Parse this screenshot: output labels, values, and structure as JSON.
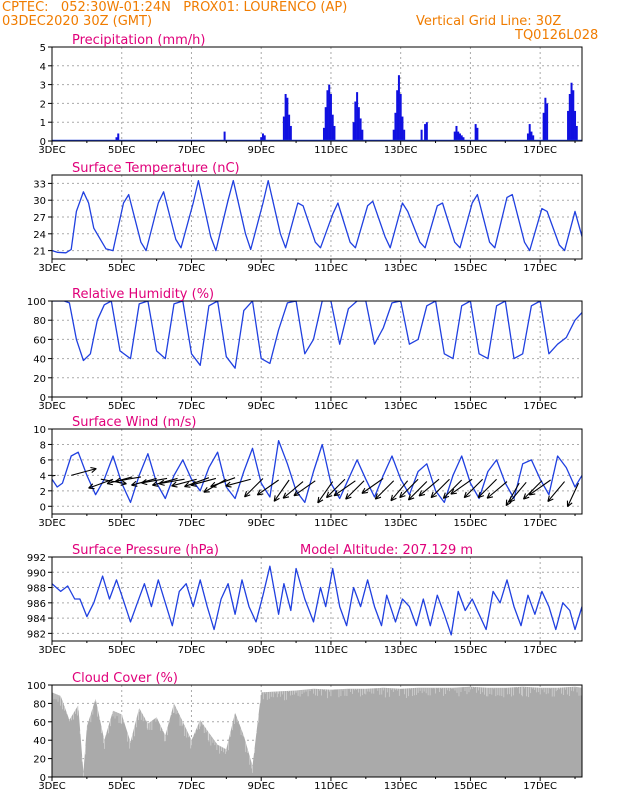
{
  "header": {
    "station_line": "CPTEC:   052:30W-01:24N   PROX01: LOURENCO (AP)",
    "date_line": "03DEC2020 30Z (GMT)",
    "grid_note": "Vertical Grid Line: 30Z",
    "run_id": "TQ0126L028"
  },
  "colors": {
    "header": "#f07c00",
    "title": "#e0007a",
    "line": "#2040e0",
    "bar": "#1010e0",
    "cloud": "#aaaaaa",
    "arrow": "#000000",
    "grid": "#aaaaaa"
  },
  "x_tick_labels": [
    "3DEC",
    "5DEC",
    "7DEC",
    "9DEC",
    "11DEC",
    "13DEC",
    "15DEC",
    "17DEC"
  ],
  "x_tick_values": [
    3,
    5,
    7,
    9,
    11,
    13,
    15,
    17
  ],
  "x_range": [
    3,
    18.2
  ],
  "panels": [
    {
      "id": "precip",
      "title": "Precipitation (mm/h)",
      "type": "bar",
      "ylim": [
        0,
        5
      ],
      "yticks": [
        0,
        1,
        2,
        3,
        4,
        5
      ],
      "ytick_labels": [
        "0",
        "1",
        "2",
        "3",
        "4",
        "5"
      ],
      "extra_label": ""
    },
    {
      "id": "temp",
      "title": "Surface Temperature (nC)",
      "type": "line",
      "ylim": [
        19.5,
        34.5
      ],
      "yticks": [
        21,
        24,
        27,
        30,
        33
      ],
      "ytick_labels": [
        "21",
        "24",
        "27",
        "30",
        "33"
      ],
      "extra_label": ""
    },
    {
      "id": "rh",
      "title": "Relative Humidity (%)",
      "type": "line",
      "ylim": [
        0,
        100
      ],
      "yticks": [
        0,
        20,
        40,
        60,
        80,
        100
      ],
      "ytick_labels": [
        "0",
        "20",
        "40",
        "60",
        "80",
        "100"
      ],
      "extra_label": ""
    },
    {
      "id": "wind",
      "title": "Surface Wind (m/s)",
      "type": "line",
      "ylim": [
        -1,
        10
      ],
      "yticks": [
        0,
        2,
        4,
        6,
        8,
        10
      ],
      "ytick_labels": [
        "0",
        "2",
        "4",
        "6",
        "8",
        "10"
      ],
      "extra_label": ""
    },
    {
      "id": "pres",
      "title": "Surface Pressure (hPa)",
      "type": "line",
      "ylim": [
        981,
        992
      ],
      "yticks": [
        982,
        984,
        986,
        988,
        990,
        992
      ],
      "ytick_labels": [
        "982",
        "984",
        "986",
        "988",
        "990",
        "992"
      ],
      "extra_label": "Model Altitude: 207.129 m"
    },
    {
      "id": "cloud",
      "title": "Cloud Cover (%)",
      "type": "area",
      "ylim": [
        0,
        100
      ],
      "yticks": [
        0,
        20,
        40,
        60,
        80,
        100
      ],
      "ytick_labels": [
        "0",
        "20",
        "40",
        "60",
        "80",
        "100"
      ],
      "extra_label": ""
    }
  ],
  "chart_data": [
    {
      "type": "bar",
      "title": "Precipitation (mm/h)",
      "ylim": [
        0,
        5
      ],
      "x": [
        4.85,
        4.9,
        7.95,
        9.0,
        9.05,
        9.1,
        9.65,
        9.7,
        9.75,
        9.8,
        9.85,
        10.8,
        10.85,
        10.9,
        10.95,
        11.0,
        11.05,
        11.1,
        11.65,
        11.7,
        11.75,
        11.8,
        11.85,
        11.9,
        12.8,
        12.85,
        12.9,
        12.95,
        13.0,
        13.05,
        13.1,
        13.6,
        13.7,
        13.75,
        14.55,
        14.6,
        14.65,
        14.7,
        14.75,
        14.8,
        15.15,
        15.2,
        16.65,
        16.7,
        16.75,
        16.8,
        17.1,
        17.15,
        17.2,
        17.8,
        17.85,
        17.9,
        17.95,
        18.0,
        18.05
      ],
      "values": [
        0.2,
        0.4,
        0.5,
        0.2,
        0.4,
        0.3,
        1.3,
        2.5,
        2.3,
        1.4,
        0.8,
        0.7,
        1.8,
        2.7,
        3.0,
        2.5,
        1.4,
        0.8,
        1.0,
        2.1,
        2.6,
        1.8,
        1.2,
        0.6,
        0.6,
        1.5,
        2.7,
        3.5,
        2.5,
        1.3,
        0.6,
        0.6,
        0.9,
        1.0,
        0.5,
        0.8,
        0.5,
        0.4,
        0.3,
        0.2,
        0.9,
        0.7,
        0.4,
        0.9,
        0.5,
        0.3,
        1.5,
        2.3,
        2.0,
        1.6,
        2.5,
        3.1,
        2.7,
        1.6,
        0.8
      ]
    },
    {
      "type": "line",
      "title": "Surface Temperature (nC)",
      "ylim": [
        19.5,
        34.5
      ],
      "x": [
        3.0,
        3.15,
        3.4,
        3.55,
        3.7,
        3.9,
        4.05,
        4.2,
        4.55,
        4.75,
        5.05,
        5.2,
        5.55,
        5.7,
        6.05,
        6.2,
        6.55,
        6.7,
        7.05,
        7.2,
        7.55,
        7.7,
        8.05,
        8.2,
        8.55,
        8.7,
        9.05,
        9.2,
        9.55,
        9.7,
        10.05,
        10.2,
        10.55,
        10.7,
        11.05,
        11.2,
        11.55,
        11.7,
        12.05,
        12.2,
        12.55,
        12.7,
        13.05,
        13.2,
        13.55,
        13.7,
        14.05,
        14.2,
        14.55,
        14.7,
        15.05,
        15.2,
        15.55,
        15.7,
        16.05,
        16.2,
        16.55,
        16.7,
        17.05,
        17.2,
        17.55,
        17.7,
        18.0,
        18.2
      ],
      "values": [
        21.0,
        20.7,
        20.6,
        21.2,
        28.0,
        31.5,
        29.5,
        25.0,
        21.3,
        21.0,
        29.5,
        31.0,
        22.5,
        21.0,
        29.5,
        31.5,
        23.0,
        21.5,
        29.5,
        33.5,
        23.5,
        21.0,
        30.0,
        33.5,
        24.0,
        21.2,
        29.5,
        33.5,
        24.0,
        21.5,
        29.5,
        29.0,
        22.5,
        21.5,
        27.5,
        29.5,
        22.5,
        21.5,
        29.0,
        29.8,
        23.5,
        21.5,
        29.5,
        28.0,
        22.5,
        21.5,
        29.0,
        29.5,
        22.5,
        21.5,
        29.5,
        31.0,
        22.5,
        21.5,
        30.5,
        31.0,
        22.5,
        21.0,
        28.5,
        28.0,
        22.0,
        21.0,
        28.0,
        23.5
      ]
    },
    {
      "type": "line",
      "title": "Relative Humidity (%)",
      "ylim": [
        0,
        100
      ],
      "x": [
        3.0,
        3.15,
        3.35,
        3.5,
        3.7,
        3.9,
        4.1,
        4.3,
        4.5,
        4.7,
        4.95,
        5.25,
        5.5,
        5.75,
        6.0,
        6.25,
        6.5,
        6.75,
        7.0,
        7.25,
        7.5,
        7.75,
        8.0,
        8.25,
        8.5,
        8.75,
        9.0,
        9.25,
        9.5,
        9.75,
        10.0,
        10.25,
        10.5,
        10.75,
        11.0,
        11.25,
        11.5,
        11.75,
        12.0,
        12.25,
        12.5,
        12.75,
        13.0,
        13.25,
        13.5,
        13.75,
        14.0,
        14.25,
        14.5,
        14.75,
        15.0,
        15.25,
        15.5,
        15.75,
        16.0,
        16.25,
        16.5,
        16.75,
        17.0,
        17.25,
        17.5,
        17.75,
        18.0,
        18.2
      ],
      "values": [
        100,
        100,
        100,
        98,
        60,
        38,
        45,
        80,
        96,
        100,
        48,
        40,
        97,
        100,
        48,
        40,
        97,
        100,
        45,
        33,
        95,
        100,
        42,
        30,
        90,
        100,
        40,
        35,
        70,
        98,
        100,
        45,
        60,
        100,
        100,
        55,
        92,
        100,
        100,
        55,
        72,
        98,
        100,
        55,
        60,
        95,
        100,
        45,
        40,
        95,
        100,
        45,
        40,
        95,
        100,
        40,
        45,
        95,
        100,
        45,
        55,
        62,
        80,
        88
      ]
    },
    {
      "type": "line",
      "title": "Surface Wind (m/s)",
      "ylim": [
        -1,
        10
      ],
      "x": [
        3.0,
        3.15,
        3.3,
        3.55,
        3.75,
        4.0,
        4.25,
        4.5,
        4.75,
        5.0,
        5.25,
        5.5,
        5.75,
        6.0,
        6.25,
        6.5,
        6.75,
        7.0,
        7.25,
        7.5,
        7.75,
        8.0,
        8.25,
        8.5,
        8.75,
        9.0,
        9.25,
        9.5,
        9.75,
        10.0,
        10.25,
        10.5,
        10.75,
        11.0,
        11.25,
        11.5,
        11.75,
        12.0,
        12.25,
        12.5,
        12.75,
        13.0,
        13.25,
        13.5,
        13.75,
        14.0,
        14.25,
        14.5,
        14.75,
        15.0,
        15.25,
        15.5,
        15.75,
        16.0,
        16.25,
        16.5,
        16.75,
        17.0,
        17.25,
        17.5,
        17.75,
        18.0,
        18.2
      ],
      "values": [
        3.5,
        2.5,
        3.0,
        6.5,
        7.0,
        4.0,
        1.5,
        3.5,
        6.5,
        3.0,
        0.5,
        4.0,
        6.8,
        3.0,
        1.0,
        4.0,
        6.0,
        3.5,
        2.0,
        5.0,
        7.0,
        2.5,
        1.0,
        4.5,
        7.5,
        3.0,
        1.2,
        8.5,
        5.5,
        2.0,
        0.5,
        4.5,
        8.0,
        3.0,
        1.0,
        3.5,
        6.0,
        3.5,
        1.2,
        4.0,
        6.5,
        3.5,
        1.5,
        4.5,
        5.5,
        2.0,
        0.5,
        4.0,
        6.5,
        3.0,
        1.0,
        4.5,
        6.0,
        3.0,
        1.0,
        5.5,
        6.0,
        3.5,
        1.5,
        6.5,
        5.0,
        2.5,
        4.0
      ]
    },
    {
      "type": "line",
      "title": "Surface Pressure (hPa)",
      "ylim": [
        981,
        992
      ],
      "x": [
        3.0,
        3.25,
        3.45,
        3.65,
        3.8,
        4.0,
        4.2,
        4.45,
        4.65,
        4.85,
        5.0,
        5.25,
        5.45,
        5.65,
        5.85,
        6.05,
        6.25,
        6.45,
        6.65,
        6.85,
        7.05,
        7.25,
        7.45,
        7.65,
        7.85,
        8.05,
        8.25,
        8.45,
        8.65,
        8.85,
        9.05,
        9.25,
        9.5,
        9.65,
        9.85,
        10.0,
        10.25,
        10.5,
        10.7,
        10.85,
        11.05,
        11.25,
        11.45,
        11.65,
        11.85,
        12.05,
        12.25,
        12.45,
        12.6,
        12.85,
        13.05,
        13.25,
        13.45,
        13.65,
        13.85,
        14.05,
        14.25,
        14.45,
        14.65,
        14.85,
        15.05,
        15.25,
        15.45,
        15.65,
        15.85,
        16.05,
        16.25,
        16.45,
        16.65,
        16.85,
        17.05,
        17.25,
        17.45,
        17.65,
        17.85,
        18.0,
        18.2
      ],
      "values": [
        988.5,
        987.5,
        988.2,
        986.5,
        986.5,
        984.2,
        986.0,
        989.5,
        986.5,
        989.0,
        987.0,
        983.5,
        986.0,
        988.5,
        985.5,
        989.0,
        986.0,
        983.0,
        987.5,
        988.5,
        985.5,
        989.0,
        985.5,
        982.5,
        986.5,
        988.5,
        984.5,
        989.0,
        985.5,
        983.5,
        987.0,
        990.8,
        984.5,
        988.5,
        985.0,
        990.5,
        986.5,
        983.5,
        988.0,
        985.5,
        990.5,
        985.5,
        983.0,
        988.0,
        985.5,
        989.0,
        985.5,
        983.0,
        987.0,
        983.5,
        986.5,
        985.5,
        983.0,
        986.5,
        983.0,
        987.0,
        984.5,
        981.8,
        987.5,
        985.0,
        986.5,
        984.5,
        982.5,
        987.5,
        986.0,
        989.0,
        985.5,
        983.0,
        987.0,
        984.5,
        987.5,
        985.5,
        982.5,
        986.0,
        985.0,
        982.5,
        985.5
      ]
    },
    {
      "type": "area",
      "title": "Cloud Cover (%)",
      "ylim": [
        0,
        100
      ],
      "x": [
        3.0,
        3.25,
        3.5,
        3.75,
        3.9,
        4.0,
        4.25,
        4.5,
        4.75,
        5.0,
        5.25,
        5.5,
        5.75,
        6.0,
        6.25,
        6.5,
        6.75,
        7.0,
        7.25,
        7.5,
        7.75,
        8.0,
        8.25,
        8.5,
        8.75,
        9.0,
        9.5,
        10.0,
        10.5,
        11.0,
        11.5,
        12.0,
        12.5,
        13.0,
        13.5,
        14.0,
        14.5,
        15.0,
        15.5,
        16.0,
        16.5,
        17.0,
        17.5,
        18.0,
        18.2
      ],
      "values": [
        92,
        88,
        62,
        78,
        5,
        55,
        85,
        40,
        72,
        68,
        38,
        75,
        58,
        65,
        45,
        80,
        60,
        40,
        62,
        48,
        35,
        30,
        70,
        45,
        12,
        92,
        93,
        94,
        96,
        95,
        96,
        96,
        97,
        96,
        97,
        97,
        97,
        98,
        97,
        97,
        98,
        97,
        97,
        98,
        97
      ]
    },
    {
      "type": "scatter",
      "title": "Surface Wind direction (arrows, pointing to)",
      "x": [
        3.1,
        3.55,
        4.4,
        4.75,
        5.3,
        5.55,
        6.0,
        6.3,
        6.6,
        6.8,
        7.15,
        7.5,
        7.7,
        8.0,
        8.25,
        8.7,
        9.05,
        9.5,
        9.8,
        10.2,
        10.55,
        11.05,
        11.4,
        11.7,
        11.95,
        12.5,
        12.8,
        13.2,
        13.5,
        13.75,
        14.1,
        14.4,
        14.75,
        15.05,
        15.35,
        15.75,
        16.05,
        16.4,
        16.6,
        17.05,
        17.3,
        17.7,
        18.1
      ],
      "values": [
        4.0,
        4.0,
        3.5,
        3.5,
        3.8,
        3.8,
        3.6,
        3.6,
        3.6,
        3.5,
        3.5,
        3.7,
        3.6,
        3.5,
        3.7,
        3.5,
        3.6,
        3.4,
        3.4,
        3.2,
        3.3,
        3.2,
        3.5,
        3.3,
        3.3,
        3.6,
        3.3,
        3.3,
        3.5,
        3.2,
        3.5,
        3.5,
        3.4,
        3.5,
        3.5,
        3.5,
        3.2,
        3.0,
        3.1,
        3.3,
        3.4,
        3.2,
        3.0
      ],
      "dir_deg": [
        190,
        15,
        350,
        200,
        195,
        190,
        195,
        190,
        195,
        190,
        195,
        200,
        195,
        210,
        200,
        195,
        225,
        215,
        235,
        220,
        215,
        235,
        225,
        215,
        225,
        215,
        225,
        230,
        225,
        225,
        220,
        225,
        225,
        215,
        225,
        225,
        220,
        240,
        230,
        225,
        215,
        230,
        245
      ]
    }
  ]
}
